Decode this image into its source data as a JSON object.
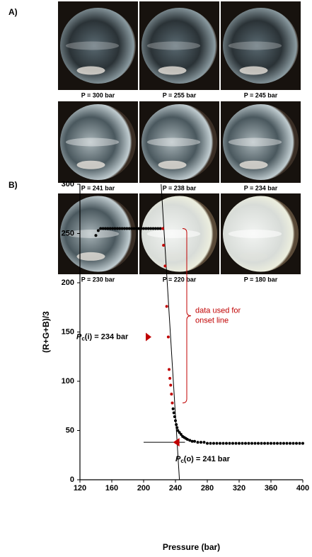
{
  "panel_a": {
    "label": "A)",
    "captions": [
      "P = 300 bar",
      "P = 255 bar",
      "P = 245 bar",
      "P = 241 bar",
      "P = 238 bar",
      "P = 234 bar",
      "P = 230 bar",
      "P = 220 bar",
      "P = 180 bar"
    ]
  },
  "chart_data": {
    "type": "scatter",
    "panel_label": "B)",
    "x_label": "Pressure (bar)",
    "y_label": "(R+G+B)/3",
    "xlim": [
      120,
      400
    ],
    "xticks": [
      120,
      160,
      200,
      240,
      280,
      320,
      360,
      400
    ],
    "ylim": [
      0,
      300
    ],
    "yticks": [
      0,
      50,
      100,
      150,
      200,
      250,
      300
    ],
    "series": [
      {
        "color": "#000000",
        "x": [
          140,
          143,
          146,
          149,
          152,
          155,
          158,
          161,
          164,
          167,
          170,
          173,
          176,
          179,
          182,
          185,
          188,
          191,
          194,
          197,
          200,
          203,
          206,
          209,
          212,
          215,
          218,
          221,
          237,
          238,
          239,
          240,
          241,
          242,
          243,
          245,
          247,
          249,
          251,
          253,
          255,
          258,
          261,
          264,
          268,
          272,
          276,
          280,
          284,
          288,
          292,
          296,
          300,
          304,
          308,
          312,
          316,
          320,
          324,
          328,
          332,
          336,
          340,
          344,
          348,
          352,
          356,
          360,
          364,
          368,
          372,
          376,
          380,
          384,
          388,
          392,
          396,
          400
        ],
        "values": [
          248,
          253,
          255,
          255,
          255,
          255,
          255,
          255,
          255,
          255,
          255,
          255,
          255,
          255,
          255,
          255,
          255,
          255,
          255,
          255,
          255,
          255,
          255,
          255,
          255,
          255,
          255,
          255,
          72,
          68,
          64,
          60,
          56,
          53,
          50,
          48,
          46,
          44,
          43,
          42,
          41,
          40,
          39,
          39,
          38,
          38,
          38,
          37,
          37,
          37,
          37,
          37,
          37,
          37,
          37,
          37,
          37,
          37,
          37,
          37,
          37,
          37,
          37,
          37,
          37,
          37,
          37,
          37,
          37,
          37,
          37,
          37,
          37,
          37,
          37,
          37,
          37,
          37
        ]
      },
      {
        "color": "#c00000",
        "x": [
          224,
          225,
          227,
          229,
          231,
          232,
          233,
          234,
          235,
          236
        ],
        "values": [
          255,
          238,
          217,
          176,
          145,
          112,
          103,
          96,
          87,
          78
        ]
      }
    ],
    "onset_line": {
      "x": [
        222,
        245
      ],
      "values": [
        300,
        0
      ]
    },
    "baseline_line": {
      "x": [
        200,
        252
      ],
      "values": [
        38,
        38
      ]
    },
    "bracket_note": [
      "data used for",
      "onset line"
    ],
    "pc_i": [
      "P",
      "c",
      "(i) = 234 bar"
    ],
    "pc_o": [
      "P",
      "c",
      "(o) = 241 bar"
    ]
  }
}
